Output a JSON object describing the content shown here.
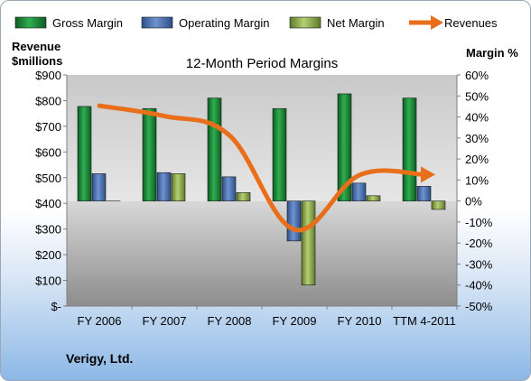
{
  "chart_data": {
    "type": "bar",
    "title": "12-Month Period Margins",
    "company": "Verigy, Ltd.",
    "left_axis_label_line1": "Revenue",
    "left_axis_label_line2": "$millions",
    "right_axis_label": "Margin %",
    "categories": [
      "FY 2006",
      "FY 2007",
      "FY 2008",
      "FY 2009",
      "FY 2010",
      "TTM 4-2011"
    ],
    "y_left_ticks": [
      "$-",
      "$100",
      "$200",
      "$300",
      "$400",
      "$500",
      "$600",
      "$700",
      "$800",
      "$900"
    ],
    "y_left_range": [
      0,
      900
    ],
    "y_right_ticks": [
      "-50%",
      "-40%",
      "-30%",
      "-20%",
      "-10%",
      "0%",
      "10%",
      "20%",
      "30%",
      "40%",
      "50%",
      "60%"
    ],
    "y_right_range": [
      -50,
      60
    ],
    "series": [
      {
        "name": "Gross Margin",
        "axis": "right",
        "kind": "bar",
        "color": "#1e8a3c",
        "values": [
          45,
          44,
          49,
          44,
          51,
          49
        ]
      },
      {
        "name": "Operating Margin",
        "axis": "right",
        "kind": "bar",
        "color": "#4a72b0",
        "values": [
          13,
          13.5,
          11.5,
          -19,
          8.5,
          7
        ]
      },
      {
        "name": "Net Margin",
        "axis": "right",
        "kind": "bar",
        "color": "#8fac4e",
        "values": [
          0,
          13,
          4,
          -40,
          2.5,
          -4
        ]
      },
      {
        "name": "Revenues",
        "axis": "left",
        "kind": "line",
        "color": "#e86e1a",
        "values": [
          780,
          740,
          665,
          298,
          510,
          512
        ]
      }
    ],
    "legend_position": "top",
    "grid": false
  }
}
